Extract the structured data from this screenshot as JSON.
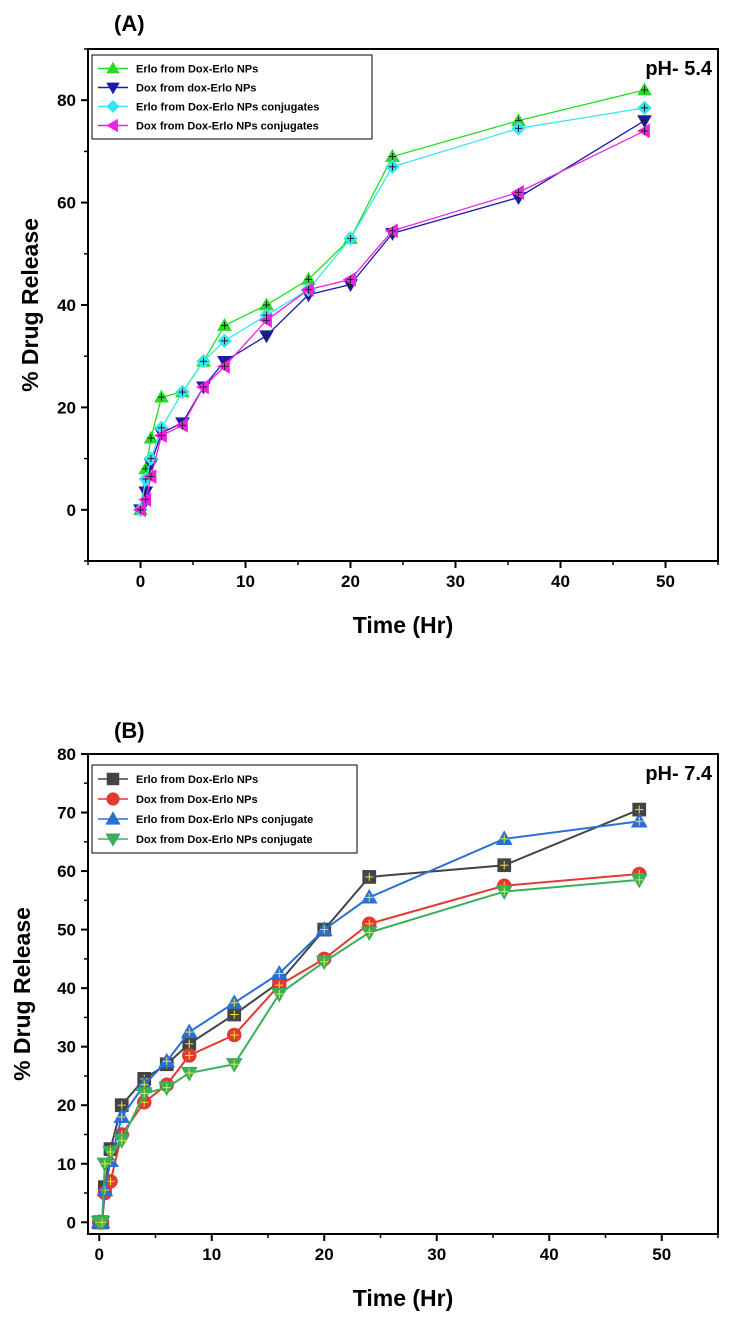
{
  "chart_data": [
    {
      "type": "line",
      "panel_label": "(A)",
      "annotation": "pH- 5.4",
      "xlabel": "Time (Hr)",
      "ylabel": "% Drug Release",
      "xlim": [
        -5,
        55
      ],
      "ylim": [
        -10,
        90
      ],
      "xticks": [
        0,
        10,
        20,
        30,
        40,
        50
      ],
      "yticks": [
        0,
        20,
        40,
        60,
        80
      ],
      "legend_position": "top-left",
      "series": [
        {
          "name": "Erlo from Dox-Erlo NPs",
          "color": "#22dd22",
          "marker": "triangle-up",
          "x": [
            0,
            0.5,
            1,
            2,
            4,
            6,
            8,
            12,
            16,
            20,
            24,
            36,
            48
          ],
          "y": [
            0,
            8,
            14,
            22,
            23,
            29,
            36,
            40,
            45,
            53,
            69,
            76,
            82
          ]
        },
        {
          "name": "Dox from dox-Erlo NPs",
          "color": "#1a1ab0",
          "marker": "triangle-down",
          "x": [
            0,
            0.5,
            1,
            2,
            4,
            6,
            8,
            12,
            16,
            20,
            24,
            36,
            48
          ],
          "y": [
            0,
            3.5,
            9,
            15,
            17,
            24,
            29,
            34,
            42,
            44,
            54,
            61,
            76
          ]
        },
        {
          "name": "Erlo from Dox-Erlo NPs conjugates",
          "color": "#33e6ee",
          "marker": "diamond",
          "x": [
            0,
            0.5,
            1,
            2,
            4,
            6,
            8,
            12,
            16,
            20,
            24,
            36,
            48
          ],
          "y": [
            0,
            6,
            10,
            16,
            23,
            29,
            33,
            38,
            43,
            53,
            67,
            74.5,
            78.5
          ]
        },
        {
          "name": "Dox from Dox-Erlo NPs conjugates",
          "color": "#ee22dd",
          "marker": "triangle-left",
          "x": [
            0,
            0.5,
            1,
            2,
            4,
            6,
            8,
            12,
            16,
            20,
            24,
            36,
            48
          ],
          "y": [
            0,
            2,
            6.5,
            14.5,
            16.5,
            24,
            28,
            37,
            43,
            45,
            54.5,
            62,
            74
          ]
        }
      ]
    },
    {
      "type": "line",
      "panel_label": "(B)",
      "annotation": "pH- 7.4",
      "xlabel": "Time (Hr)",
      "ylabel": "% Drug Release",
      "xlim": [
        -1,
        55
      ],
      "ylim": [
        -2,
        80
      ],
      "xticks": [
        0,
        10,
        20,
        30,
        40,
        50
      ],
      "yticks": [
        0,
        10,
        20,
        30,
        40,
        50,
        60,
        70,
        80
      ],
      "legend_position": "top-left",
      "series": [
        {
          "name": "Erlo from Dox-Erlo NPs",
          "color": "#444444",
          "marker": "square",
          "x": [
            0,
            0.25,
            0.5,
            1,
            2,
            4,
            6,
            8,
            12,
            16,
            20,
            24,
            36,
            48
          ],
          "y": [
            0,
            0,
            6,
            12.5,
            20,
            24.5,
            27,
            30.5,
            35.5,
            41,
            50,
            59,
            61,
            70.5
          ]
        },
        {
          "name": "Dox from Dox-Erlo NPs",
          "color": "#e23a30",
          "marker": "circle",
          "x": [
            0,
            0.25,
            0.5,
            1,
            2,
            4,
            6,
            8,
            12,
            16,
            20,
            24,
            36,
            48
          ],
          "y": [
            0,
            0,
            5,
            7,
            15,
            20.5,
            23.5,
            28.5,
            32,
            40.5,
            45,
            51,
            57.5,
            59.5
          ]
        },
        {
          "name": "Erlo from Dox-Erlo NPs conjugate",
          "color": "#2a6fd6",
          "marker": "triangle-up",
          "x": [
            0,
            0.25,
            0.5,
            1,
            2,
            4,
            6,
            8,
            12,
            16,
            20,
            24,
            36,
            48
          ],
          "y": [
            0,
            0,
            5.5,
            10.5,
            18,
            23.5,
            27.5,
            32.5,
            37.5,
            42.5,
            50,
            55.5,
            65.5,
            68.5
          ]
        },
        {
          "name": "Dox from Dox-Erlo NPs conjugate",
          "color": "#3aae5c",
          "marker": "triangle-down",
          "x": [
            0,
            0.25,
            0.5,
            1,
            2,
            4,
            6,
            8,
            12,
            16,
            20,
            24,
            36,
            48
          ],
          "y": [
            0,
            0,
            10,
            12,
            14,
            22,
            23,
            25.5,
            27,
            39,
            44.5,
            49.5,
            56.5,
            58.5
          ]
        }
      ]
    }
  ]
}
